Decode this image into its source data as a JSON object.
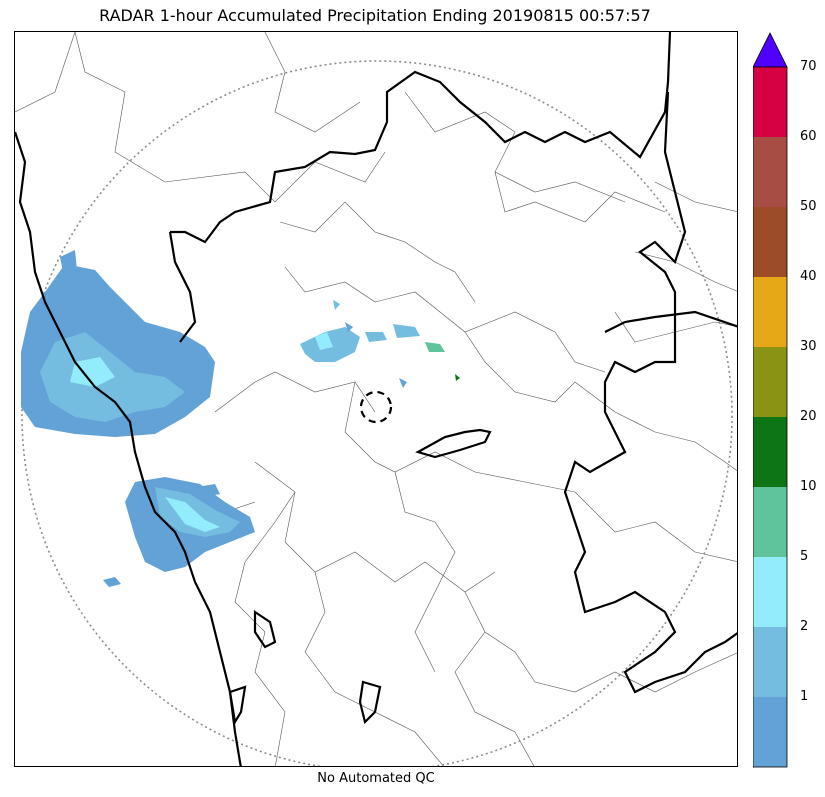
{
  "title": "RADAR 1-hour Accumulated Precipitation Ending 20190815 00:57:57",
  "footer": "No Automated QC",
  "map": {
    "range_ring_color": "#8c8c8c",
    "boundary_color": "#000000",
    "radar_site_marker": "dashed-circle"
  },
  "colorbar": {
    "extend": "max",
    "extend_color": "#5000ff",
    "levels": [
      {
        "max": 1,
        "color": "#62a2d6"
      },
      {
        "max": 2,
        "color": "#74bde0"
      },
      {
        "max": 5,
        "color": "#93ecfb"
      },
      {
        "max": 10,
        "color": "#5fc39b"
      },
      {
        "max": 20,
        "color": "#0e7515"
      },
      {
        "max": 30,
        "color": "#8b9314"
      },
      {
        "max": 40,
        "color": "#e7a817"
      },
      {
        "max": 50,
        "color": "#9c4c26"
      },
      {
        "max": 60,
        "color": "#a84d44"
      },
      {
        "max": 70,
        "color": "#d50143"
      }
    ],
    "tick_labels": [
      "1",
      "2",
      "5",
      "10",
      "20",
      "30",
      "40",
      "50",
      "60",
      "70"
    ]
  }
}
